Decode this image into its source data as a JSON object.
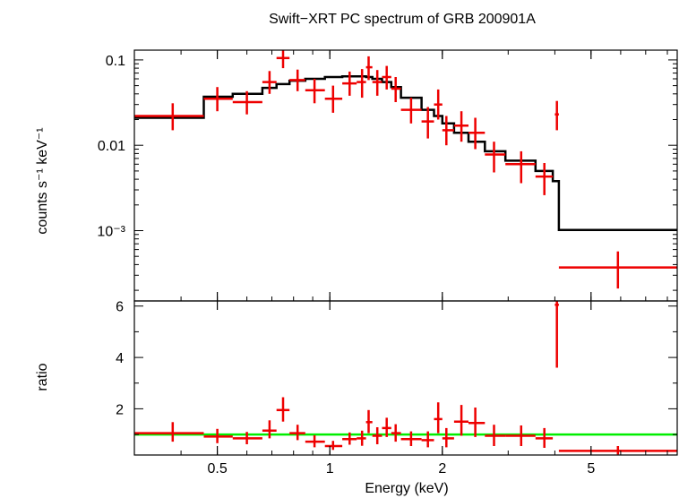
{
  "colors": {
    "data": "#ee0000",
    "model": "#000000",
    "unity": "#00ee00",
    "frame": "#000000"
  },
  "chart_data": {
    "type": "scatter",
    "title": "Swift−XRT PC spectrum of GRB 200901A",
    "xlabel": "Energy (keV)",
    "xscale": "log",
    "xlim": [
      0.3,
      8.5
    ],
    "x_ticks": [
      {
        "value": 0.5,
        "label": "0.5"
      },
      {
        "value": 1,
        "label": "1"
      },
      {
        "value": 2,
        "label": "2"
      },
      {
        "value": 5,
        "label": "5"
      }
    ],
    "top_panel": {
      "ylabel": "counts s⁻¹ keV⁻¹",
      "yscale": "log",
      "ylim": [
        0.00015,
        0.13
      ],
      "y_ticks": [
        {
          "value": 0.1,
          "label": "0.1"
        },
        {
          "value": 0.01,
          "label": "0.01"
        },
        {
          "value": 0.001,
          "label": "10⁻³"
        }
      ],
      "data": [
        {
          "x": 0.38,
          "xlo": 0.3,
          "xhi": 0.46,
          "y": 0.022,
          "ylo": 0.015,
          "yhi": 0.031
        },
        {
          "x": 0.5,
          "xlo": 0.46,
          "xhi": 0.55,
          "y": 0.035,
          "ylo": 0.025,
          "yhi": 0.048
        },
        {
          "x": 0.6,
          "xlo": 0.55,
          "xhi": 0.66,
          "y": 0.032,
          "ylo": 0.023,
          "yhi": 0.043
        },
        {
          "x": 0.69,
          "xlo": 0.66,
          "xhi": 0.72,
          "y": 0.055,
          "ylo": 0.04,
          "yhi": 0.074
        },
        {
          "x": 0.75,
          "xlo": 0.72,
          "xhi": 0.78,
          "y": 0.105,
          "ylo": 0.08,
          "yhi": 0.13
        },
        {
          "x": 0.82,
          "xlo": 0.78,
          "xhi": 0.86,
          "y": 0.058,
          "ylo": 0.043,
          "yhi": 0.077
        },
        {
          "x": 0.91,
          "xlo": 0.86,
          "xhi": 0.97,
          "y": 0.044,
          "ylo": 0.031,
          "yhi": 0.06
        },
        {
          "x": 1.02,
          "xlo": 0.97,
          "xhi": 1.08,
          "y": 0.035,
          "ylo": 0.024,
          "yhi": 0.05
        },
        {
          "x": 1.13,
          "xlo": 1.08,
          "xhi": 1.18,
          "y": 0.053,
          "ylo": 0.038,
          "yhi": 0.073
        },
        {
          "x": 1.22,
          "xlo": 1.18,
          "xhi": 1.25,
          "y": 0.055,
          "ylo": 0.036,
          "yhi": 0.078
        },
        {
          "x": 1.27,
          "xlo": 1.25,
          "xhi": 1.3,
          "y": 0.082,
          "ylo": 0.058,
          "yhi": 0.11
        },
        {
          "x": 1.34,
          "xlo": 1.3,
          "xhi": 1.38,
          "y": 0.055,
          "ylo": 0.038,
          "yhi": 0.076
        },
        {
          "x": 1.42,
          "xlo": 1.38,
          "xhi": 1.46,
          "y": 0.063,
          "ylo": 0.045,
          "yhi": 0.085
        },
        {
          "x": 1.5,
          "xlo": 1.46,
          "xhi": 1.55,
          "y": 0.046,
          "ylo": 0.032,
          "yhi": 0.063
        },
        {
          "x": 1.65,
          "xlo": 1.55,
          "xhi": 1.76,
          "y": 0.026,
          "ylo": 0.018,
          "yhi": 0.036
        },
        {
          "x": 1.83,
          "xlo": 1.76,
          "xhi": 1.9,
          "y": 0.019,
          "ylo": 0.012,
          "yhi": 0.028
        },
        {
          "x": 1.95,
          "xlo": 1.9,
          "xhi": 2.0,
          "y": 0.03,
          "ylo": 0.02,
          "yhi": 0.045
        },
        {
          "x": 2.05,
          "xlo": 2.0,
          "xhi": 2.15,
          "y": 0.015,
          "ylo": 0.01,
          "yhi": 0.022
        },
        {
          "x": 2.25,
          "xlo": 2.15,
          "xhi": 2.35,
          "y": 0.017,
          "ylo": 0.011,
          "yhi": 0.025
        },
        {
          "x": 2.45,
          "xlo": 2.35,
          "xhi": 2.6,
          "y": 0.014,
          "ylo": 0.009,
          "yhi": 0.021
        },
        {
          "x": 2.75,
          "xlo": 2.6,
          "xhi": 2.95,
          "y": 0.0078,
          "ylo": 0.0048,
          "yhi": 0.011
        },
        {
          "x": 3.25,
          "xlo": 2.95,
          "xhi": 3.55,
          "y": 0.006,
          "ylo": 0.0036,
          "yhi": 0.0085
        },
        {
          "x": 3.75,
          "xlo": 3.55,
          "xhi": 3.95,
          "y": 0.0043,
          "ylo": 0.0026,
          "yhi": 0.0062
        },
        {
          "x": 4.05,
          "xlo": 4.0,
          "xhi": 4.1,
          "y": 0.023,
          "ylo": 0.015,
          "yhi": 0.033
        },
        {
          "x": 5.9,
          "xlo": 4.1,
          "xhi": 8.5,
          "y": 0.00037,
          "ylo": 0.00021,
          "yhi": 0.00057
        }
      ],
      "model": {
        "edges": [
          0.3,
          0.46,
          0.55,
          0.66,
          0.72,
          0.78,
          0.86,
          0.97,
          1.08,
          1.18,
          1.25,
          1.3,
          1.38,
          1.46,
          1.55,
          1.76,
          1.9,
          2.0,
          2.15,
          2.35,
          2.6,
          2.95,
          3.55,
          3.95,
          4.1,
          8.5
        ],
        "values": [
          0.021,
          0.037,
          0.04,
          0.047,
          0.052,
          0.057,
          0.06,
          0.063,
          0.064,
          0.064,
          0.063,
          0.06,
          0.055,
          0.048,
          0.036,
          0.026,
          0.022,
          0.018,
          0.014,
          0.011,
          0.0085,
          0.0066,
          0.005,
          0.0038,
          0.00102
        ]
      }
    },
    "bottom_panel": {
      "ylabel": "ratio",
      "ylim": [
        0.2,
        6.2
      ],
      "y_ticks": [
        {
          "value": 2,
          "label": "2"
        },
        {
          "value": 4,
          "label": "4"
        },
        {
          "value": 6,
          "label": "6"
        }
      ],
      "unity_line": 1,
      "data": [
        {
          "x": 0.38,
          "xlo": 0.3,
          "xhi": 0.46,
          "y": 1.05,
          "ylo": 0.72,
          "yhi": 1.48
        },
        {
          "x": 0.5,
          "xlo": 0.46,
          "xhi": 0.55,
          "y": 0.92,
          "ylo": 0.66,
          "yhi": 1.22
        },
        {
          "x": 0.6,
          "xlo": 0.55,
          "xhi": 0.66,
          "y": 0.85,
          "ylo": 0.62,
          "yhi": 1.1
        },
        {
          "x": 0.69,
          "xlo": 0.66,
          "xhi": 0.72,
          "y": 1.15,
          "ylo": 0.85,
          "yhi": 1.55
        },
        {
          "x": 0.75,
          "xlo": 0.72,
          "xhi": 0.78,
          "y": 1.95,
          "ylo": 1.5,
          "yhi": 2.45
        },
        {
          "x": 0.82,
          "xlo": 0.78,
          "xhi": 0.86,
          "y": 1.05,
          "ylo": 0.78,
          "yhi": 1.38
        },
        {
          "x": 0.91,
          "xlo": 0.86,
          "xhi": 0.97,
          "y": 0.72,
          "ylo": 0.5,
          "yhi": 0.97
        },
        {
          "x": 1.02,
          "xlo": 0.97,
          "xhi": 1.08,
          "y": 0.55,
          "ylo": 0.4,
          "yhi": 0.75
        },
        {
          "x": 1.13,
          "xlo": 1.08,
          "xhi": 1.18,
          "y": 0.82,
          "ylo": 0.6,
          "yhi": 1.08
        },
        {
          "x": 1.22,
          "xlo": 1.18,
          "xhi": 1.25,
          "y": 0.85,
          "ylo": 0.56,
          "yhi": 1.15
        },
        {
          "x": 1.27,
          "xlo": 1.25,
          "xhi": 1.3,
          "y": 1.48,
          "ylo": 1.05,
          "yhi": 1.95
        },
        {
          "x": 1.34,
          "xlo": 1.3,
          "xhi": 1.38,
          "y": 0.95,
          "ylo": 0.62,
          "yhi": 1.28
        },
        {
          "x": 1.42,
          "xlo": 1.38,
          "xhi": 1.46,
          "y": 1.25,
          "ylo": 0.9,
          "yhi": 1.65
        },
        {
          "x": 1.5,
          "xlo": 1.46,
          "xhi": 1.55,
          "y": 1.05,
          "ylo": 0.72,
          "yhi": 1.4
        },
        {
          "x": 1.65,
          "xlo": 1.55,
          "xhi": 1.76,
          "y": 0.82,
          "ylo": 0.55,
          "yhi": 1.12
        },
        {
          "x": 1.83,
          "xlo": 1.76,
          "xhi": 1.9,
          "y": 0.78,
          "ylo": 0.5,
          "yhi": 1.12
        },
        {
          "x": 1.95,
          "xlo": 1.9,
          "xhi": 2.0,
          "y": 1.6,
          "ylo": 1.05,
          "yhi": 2.25
        },
        {
          "x": 2.05,
          "xlo": 2.0,
          "xhi": 2.15,
          "y": 0.85,
          "ylo": 0.5,
          "yhi": 1.25
        },
        {
          "x": 2.25,
          "xlo": 2.15,
          "xhi": 2.35,
          "y": 1.5,
          "ylo": 0.95,
          "yhi": 2.15
        },
        {
          "x": 2.45,
          "xlo": 2.35,
          "xhi": 2.6,
          "y": 1.45,
          "ylo": 0.9,
          "yhi": 2.05
        },
        {
          "x": 2.75,
          "xlo": 2.6,
          "xhi": 2.95,
          "y": 0.95,
          "ylo": 0.55,
          "yhi": 1.38
        },
        {
          "x": 3.25,
          "xlo": 2.95,
          "xhi": 3.55,
          "y": 0.95,
          "ylo": 0.55,
          "yhi": 1.35
        },
        {
          "x": 3.75,
          "xlo": 3.55,
          "xhi": 3.95,
          "y": 0.85,
          "ylo": 0.48,
          "yhi": 1.25
        },
        {
          "x": 4.05,
          "xlo": 4.0,
          "xhi": 4.1,
          "y": 6.05,
          "ylo": 3.6,
          "yhi": 6.2
        },
        {
          "x": 5.9,
          "xlo": 4.1,
          "xhi": 8.5,
          "y": 0.36,
          "ylo": 0.22,
          "yhi": 0.55
        }
      ]
    }
  }
}
